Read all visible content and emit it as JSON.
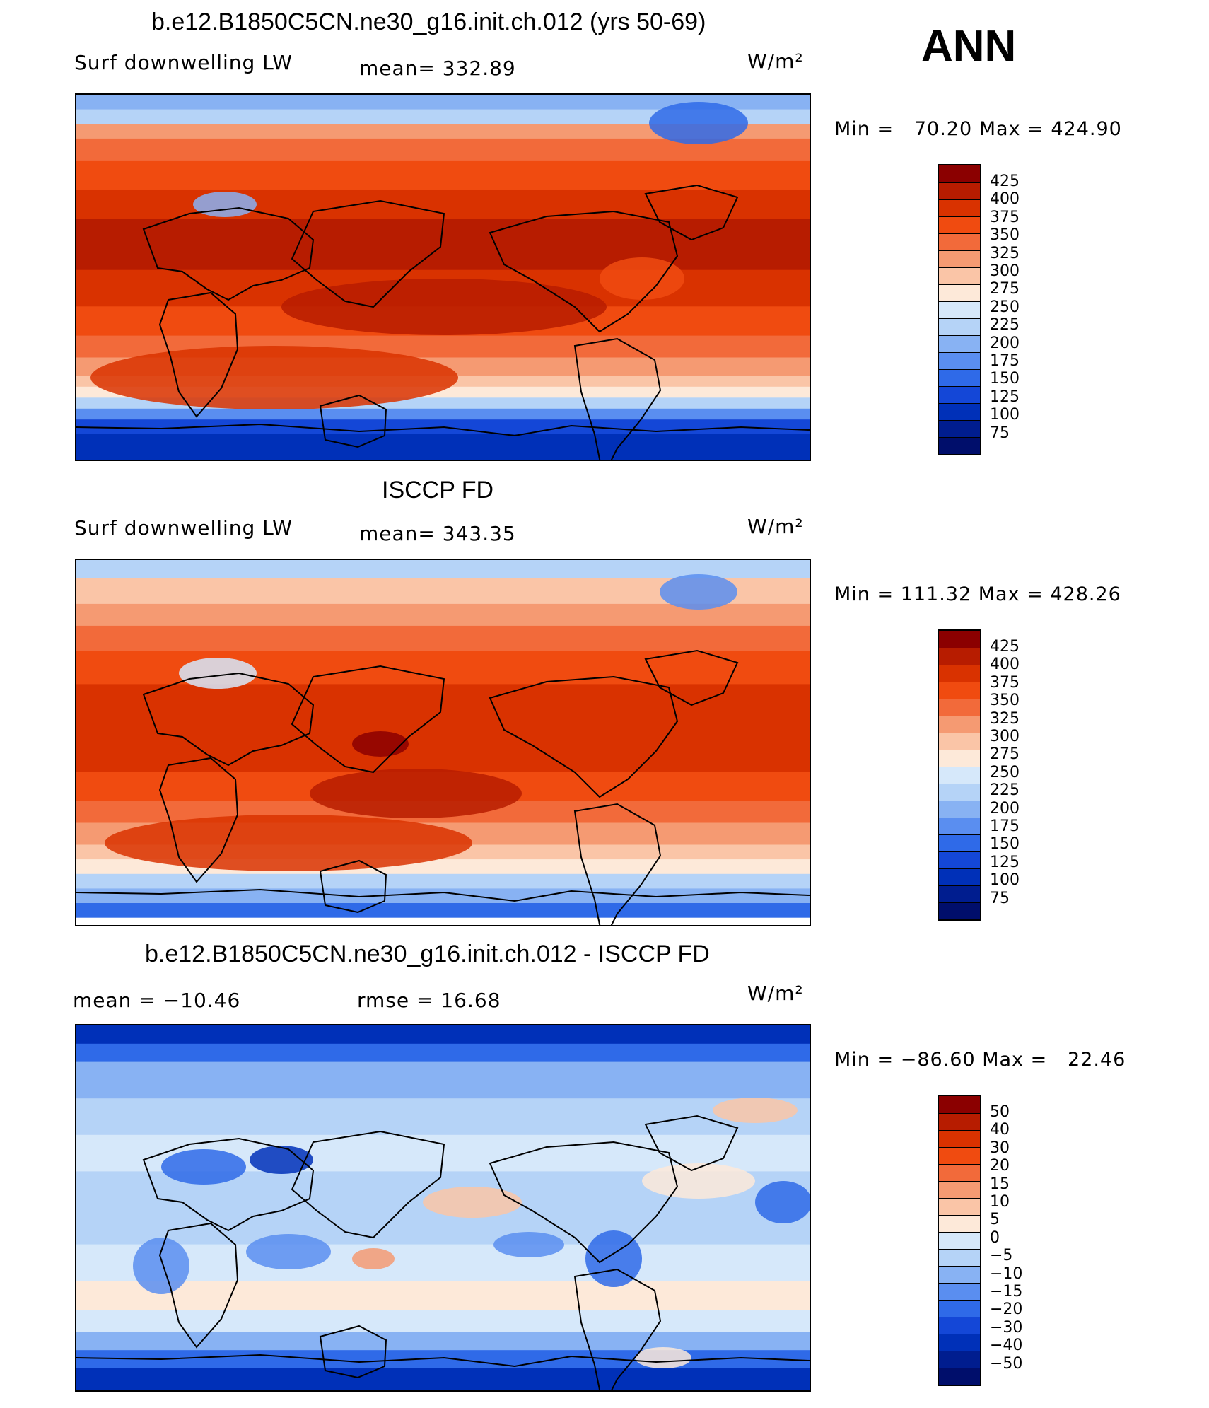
{
  "season": "ANN",
  "panels": [
    {
      "title": "b.e12.B1850C5CN.ne30_g16.init.ch.012 (yrs 50-69)",
      "left_label": "Surf downwelling LW",
      "center_label": "mean=  332.89",
      "units": "W/m²",
      "minmax": "Min =   70.20 Max = 424.90",
      "colorbar": {
        "colors": [
          "#8b0000",
          "#b71c00",
          "#d93200",
          "#f04b10",
          "#f26a3a",
          "#f59a72",
          "#fac5a7",
          "#fde9d9",
          "#d6e8fa",
          "#b5d3f7",
          "#88b2f3",
          "#5a8ef0",
          "#2f6ae8",
          "#1447d7",
          "#0030b8",
          "#001d8f",
          "#000e6b"
        ],
        "ticks": [
          "425",
          "400",
          "375",
          "350",
          "325",
          "300",
          "275",
          "250",
          "225",
          "200",
          "175",
          "150",
          "125",
          "100",
          "75"
        ]
      },
      "map_scheme": "abs_a"
    },
    {
      "title": "ISCCP FD",
      "left_label": "Surf downwelling LW",
      "center_label": "mean=  343.35",
      "units": "W/m²",
      "minmax": "Min = 111.32 Max = 428.26",
      "colorbar": {
        "colors": [
          "#8b0000",
          "#b71c00",
          "#d93200",
          "#f04b10",
          "#f26a3a",
          "#f59a72",
          "#fac5a7",
          "#fde9d9",
          "#d6e8fa",
          "#b5d3f7",
          "#88b2f3",
          "#5a8ef0",
          "#2f6ae8",
          "#1447d7",
          "#0030b8",
          "#001d8f",
          "#000e6b"
        ],
        "ticks": [
          "425",
          "400",
          "375",
          "350",
          "325",
          "300",
          "275",
          "250",
          "225",
          "200",
          "175",
          "150",
          "125",
          "100",
          "75"
        ]
      },
      "map_scheme": "abs_b"
    },
    {
      "title": "b.e12.B1850C5CN.ne30_g16.init.ch.012 - ISCCP FD",
      "left_label": "mean  = −10.46",
      "center_label": "rmse  =   16.68",
      "units": "W/m²",
      "minmax": "Min = −86.60 Max =   22.46",
      "colorbar": {
        "colors": [
          "#8b0000",
          "#b71c00",
          "#d93200",
          "#f04b10",
          "#f26a3a",
          "#f59a72",
          "#fac5a7",
          "#fde9d9",
          "#d6e8fa",
          "#b5d3f7",
          "#88b2f3",
          "#5a8ef0",
          "#2f6ae8",
          "#1447d7",
          "#0030b8",
          "#001d8f",
          "#000e6b"
        ],
        "ticks": [
          "50",
          "40",
          "30",
          "20",
          "15",
          "10",
          "5",
          "0",
          "−5",
          "−10",
          "−15",
          "−20",
          "−30",
          "−40",
          "−50"
        ]
      },
      "map_scheme": "diff"
    }
  ]
}
